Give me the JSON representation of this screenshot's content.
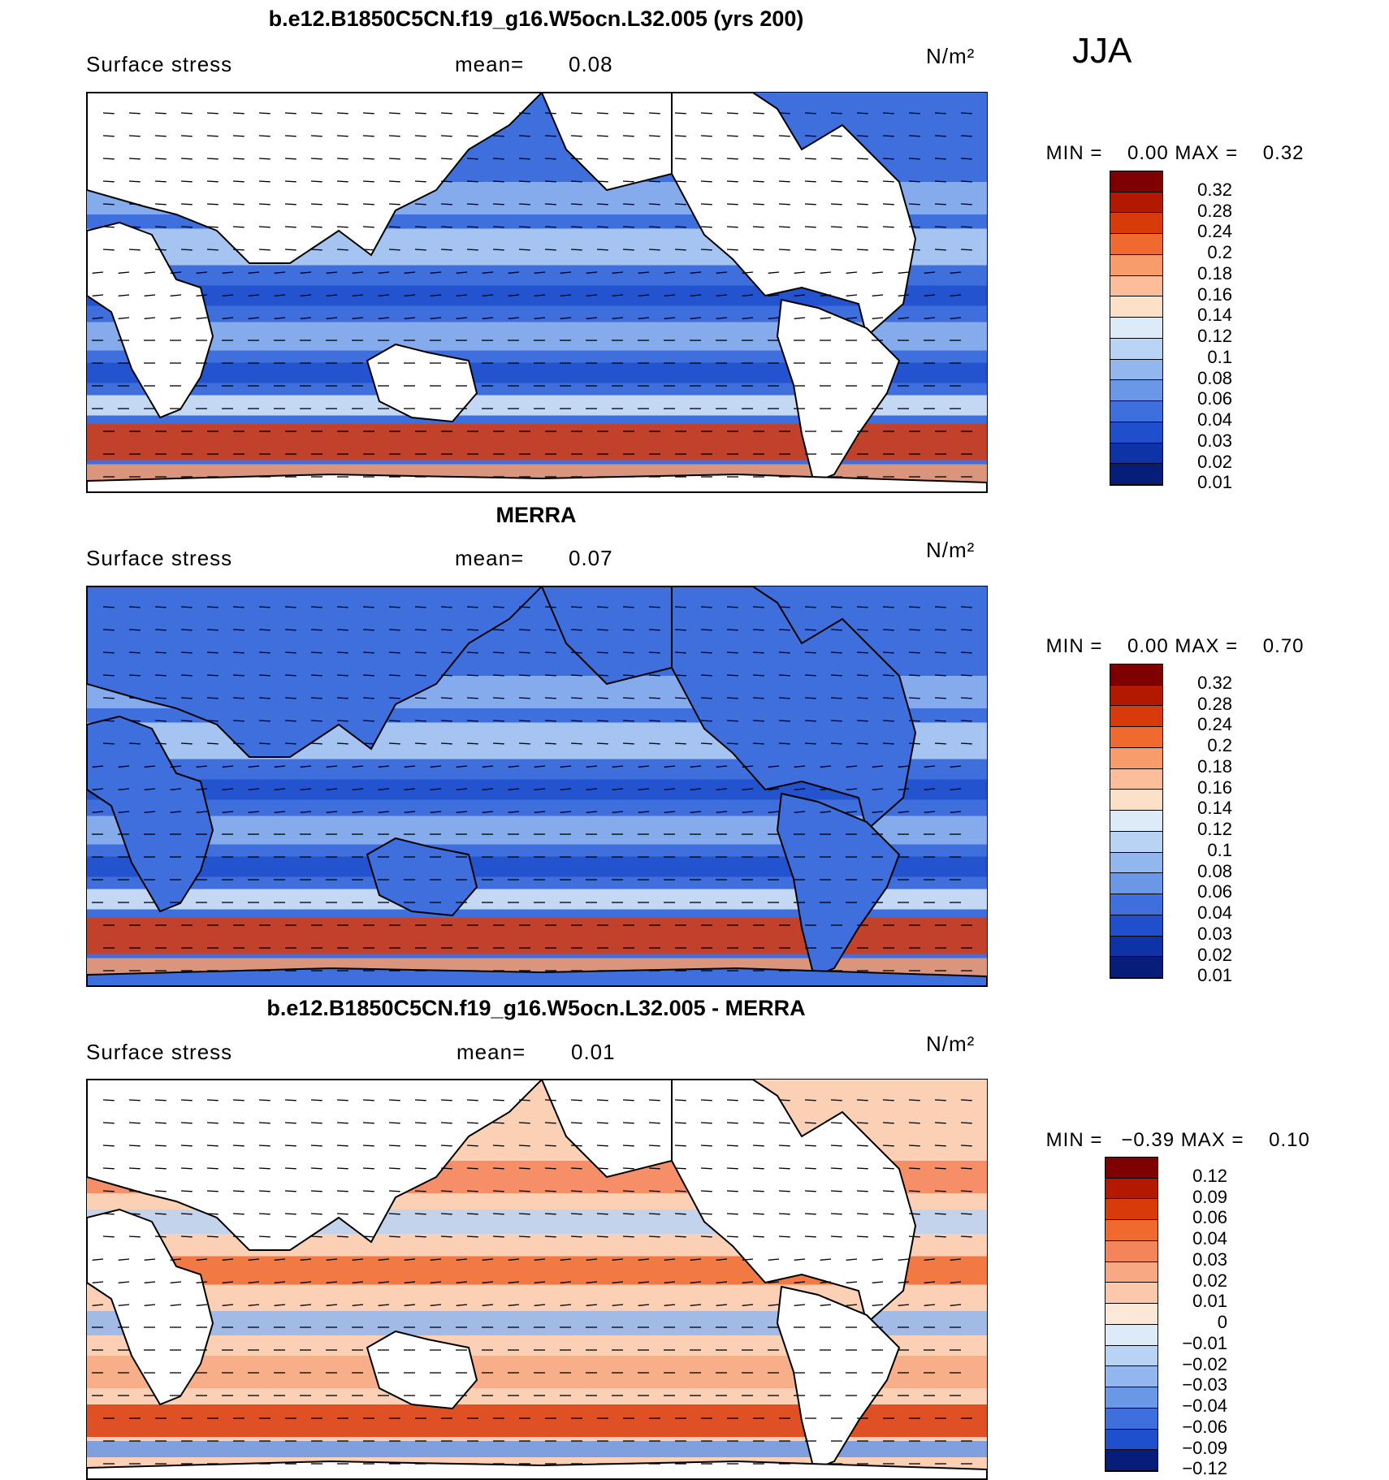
{
  "season": "JJA",
  "panels": [
    {
      "title": "b.e12.B1850C5CN.f19_g16.W5ocn.L32.005 (yrs 200)",
      "variable": "Surface stress",
      "mean_label": "mean=",
      "mean_value": "0.08",
      "units": "N/m²",
      "min_label": "MIN =",
      "min_value": "0.00",
      "max_label": "MAX =",
      "max_value": "0.32",
      "colorbar_labels": [
        "0.32",
        "0.28",
        "0.24",
        "0.2",
        "0.18",
        "0.16",
        "0.14",
        "0.12",
        "0.1",
        "0.08",
        "0.06",
        "0.04",
        "0.03",
        "0.02",
        "0.01"
      ],
      "colorbar_colors": [
        "#7f0000",
        "#b21900",
        "#d93a0a",
        "#f06a30",
        "#f89c6c",
        "#fbbd9a",
        "#fde0c8",
        "#dcebf7",
        "#b9d3f5",
        "#92b6ee",
        "#6a97e6",
        "#3e6fdc",
        "#1f4fcc",
        "#0e33a6",
        "#061d7a"
      ]
    },
    {
      "title": "MERRA",
      "variable": "Surface stress",
      "mean_label": "mean=",
      "mean_value": "0.07",
      "units": "N/m²",
      "min_label": "MIN =",
      "min_value": "0.00",
      "max_label": "MAX =",
      "max_value": "0.70",
      "colorbar_labels": [
        "0.32",
        "0.28",
        "0.24",
        "0.2",
        "0.18",
        "0.16",
        "0.14",
        "0.12",
        "0.1",
        "0.08",
        "0.06",
        "0.04",
        "0.03",
        "0.02",
        "0.01"
      ],
      "colorbar_colors": [
        "#7f0000",
        "#b21900",
        "#d93a0a",
        "#f06a30",
        "#f89c6c",
        "#fbbd9a",
        "#fde0c8",
        "#dcebf7",
        "#b9d3f5",
        "#92b6ee",
        "#6a97e6",
        "#3e6fdc",
        "#1f4fcc",
        "#0e33a6",
        "#061d7a"
      ]
    },
    {
      "title": "b.e12.B1850C5CN.f19_g16.W5ocn.L32.005 - MERRA",
      "variable": "Surface stress",
      "mean_label": "mean=",
      "mean_value": "0.01",
      "units": "N/m²",
      "min_label": "MIN =",
      "min_value": "−0.39",
      "max_label": "MAX =",
      "max_value": "0.10",
      "colorbar_labels": [
        "0.12",
        "0.09",
        "0.06",
        "0.04",
        "0.03",
        "0.02",
        "0.01",
        "0",
        "−0.01",
        "−0.02",
        "−0.03",
        "−0.04",
        "−0.06",
        "−0.09",
        "−0.12"
      ],
      "colorbar_colors": [
        "#7f0000",
        "#b21900",
        "#d93a0a",
        "#f06a30",
        "#f4845a",
        "#f8a882",
        "#fbc8ab",
        "#fde7d6",
        "#dcebf7",
        "#b9d3f5",
        "#92b6ee",
        "#6a97e6",
        "#3e6fdc",
        "#1f4fcc",
        "#061d7a"
      ]
    }
  ]
}
